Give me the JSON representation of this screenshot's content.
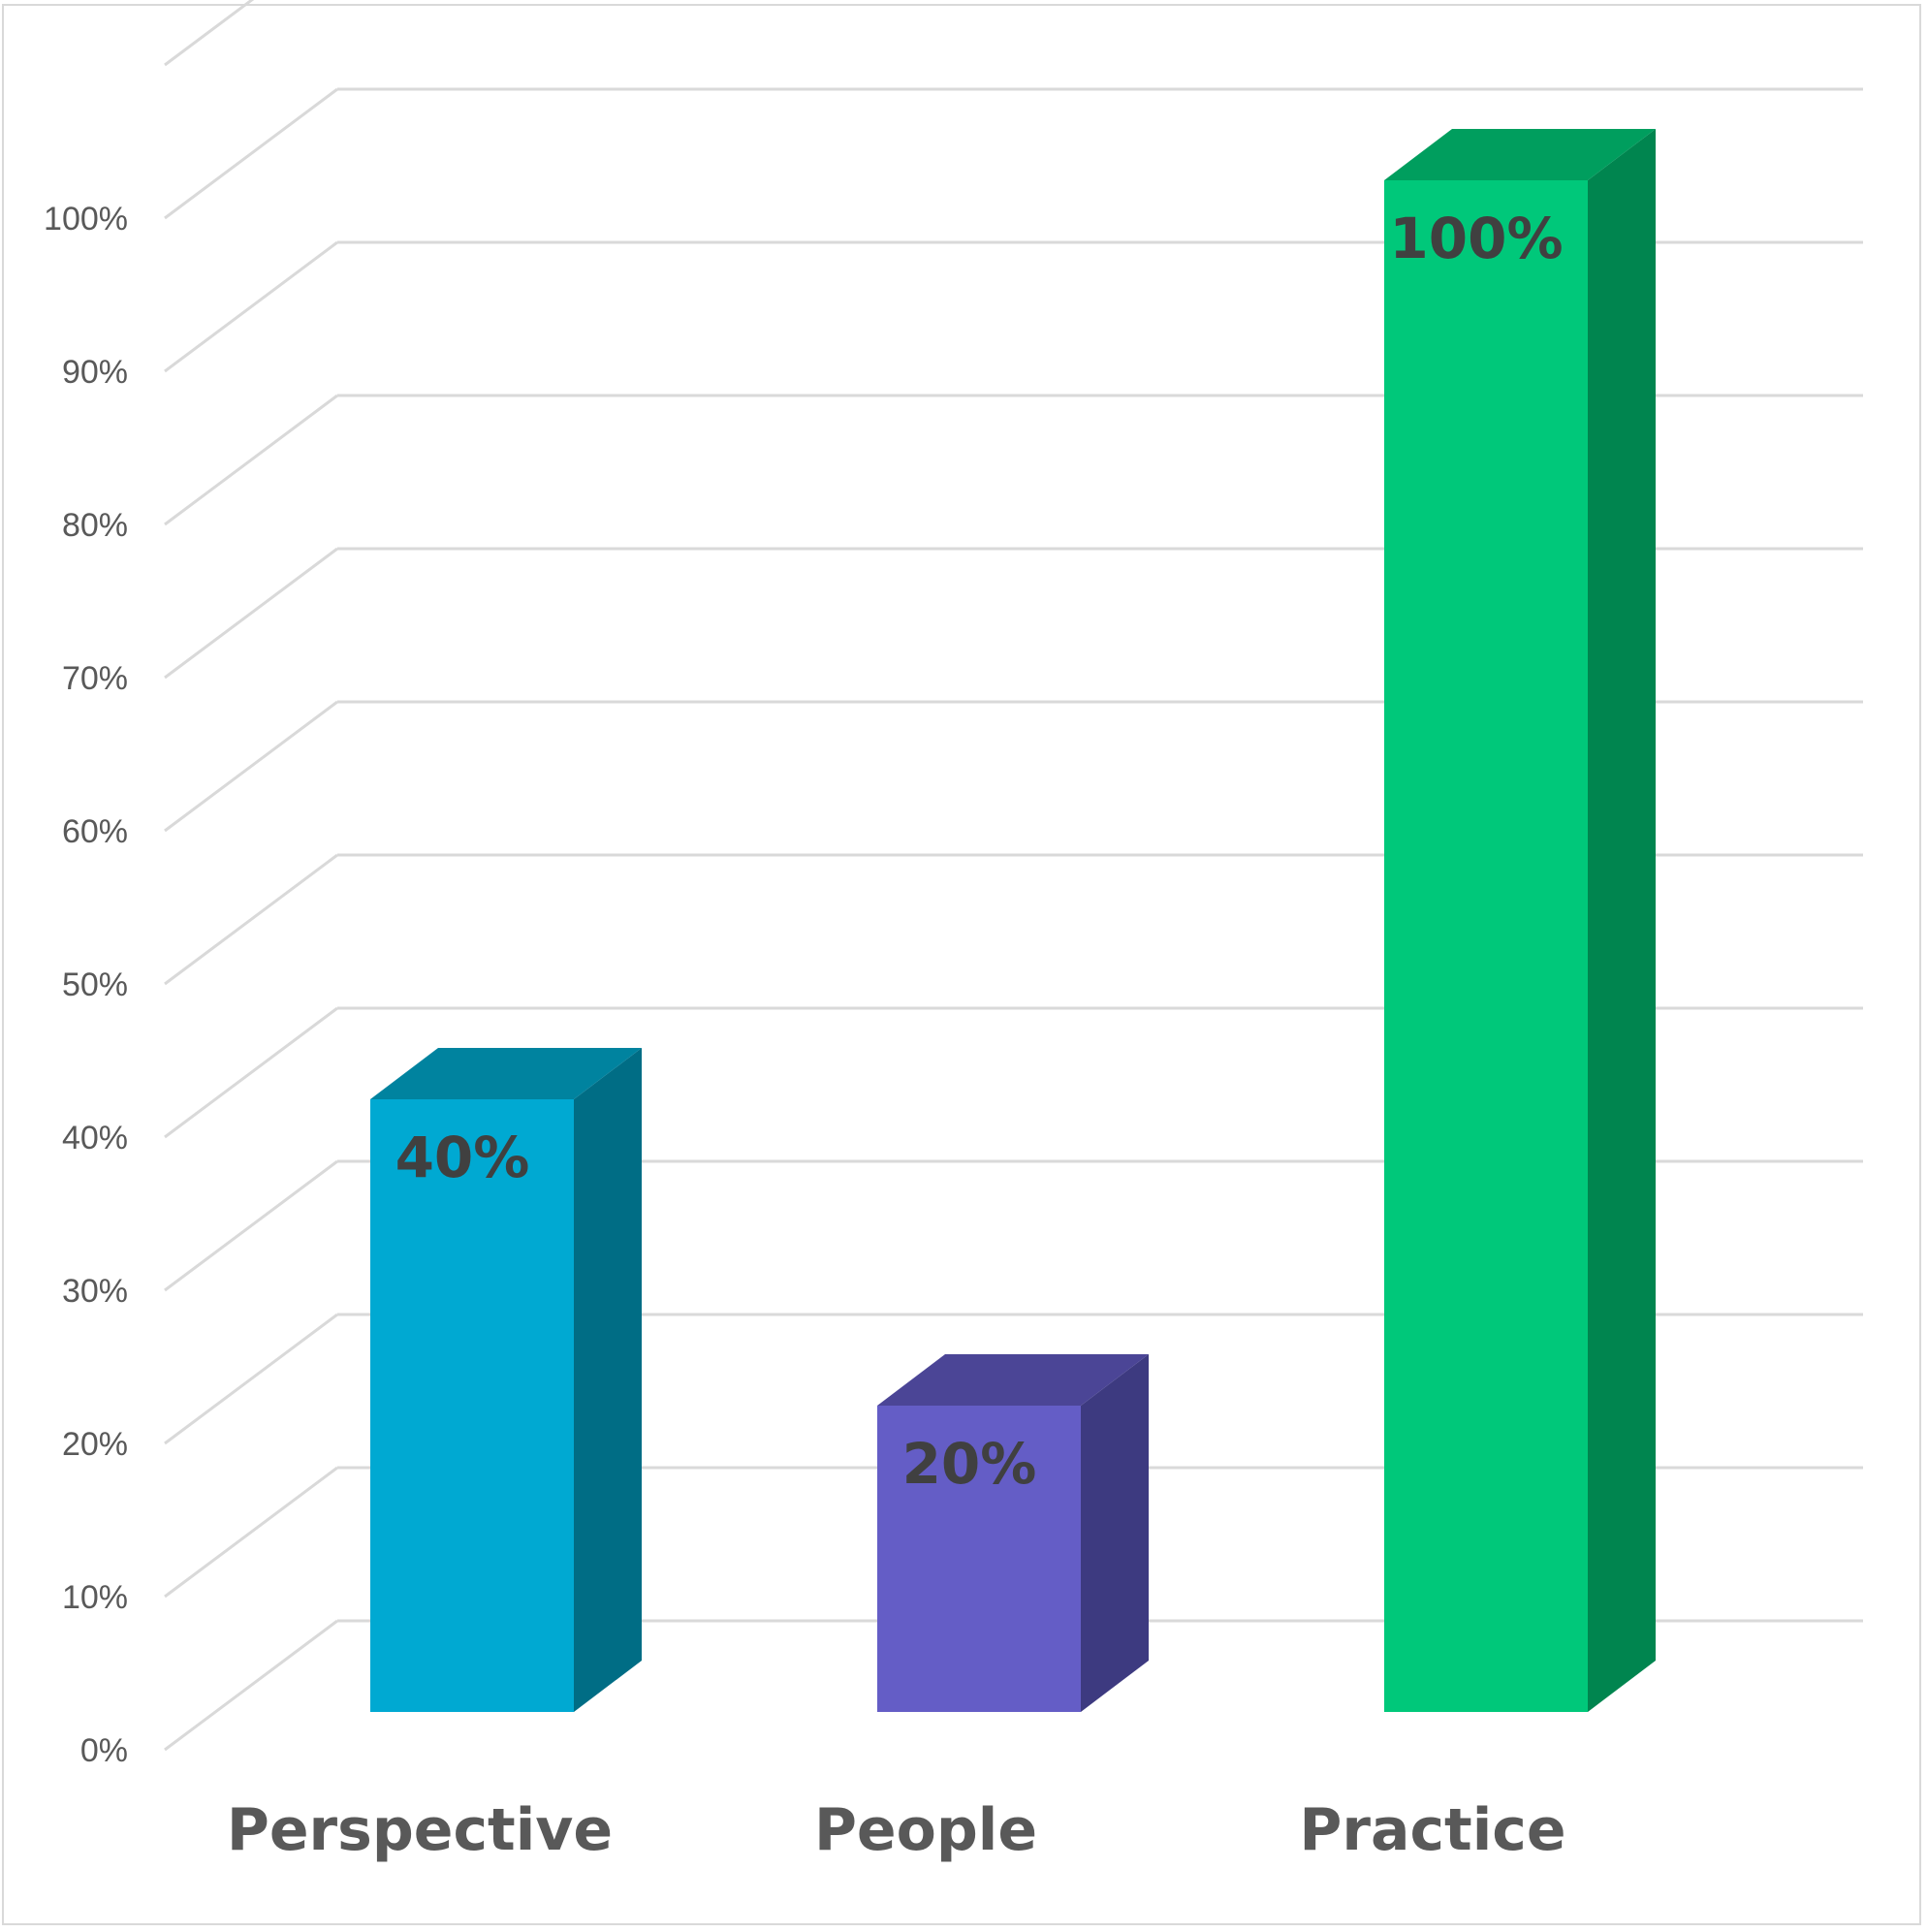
{
  "chart_data": {
    "type": "bar",
    "style": "3d-column",
    "title": "",
    "xlabel": "",
    "ylabel": "",
    "ylim": [
      0,
      100
    ],
    "ytick_step": 10,
    "ytick_labels": [
      "0%",
      "10%",
      "20%",
      "30%",
      "40%",
      "50%",
      "60%",
      "70%",
      "80%",
      "90%",
      "100%"
    ],
    "grid": true,
    "legend": "none",
    "categories": [
      "Perspective",
      "People",
      "Practice"
    ],
    "values": [
      40,
      20,
      100
    ],
    "data_labels": [
      "40%",
      "20%",
      "100%"
    ],
    "colors": {
      "front": [
        "#00A9D2",
        "#645DC6",
        "#00C87A"
      ],
      "side": [
        "#006D85",
        "#3D3A80",
        "#00854F"
      ],
      "top": [
        "#00839F",
        "#4B4596",
        "#009E5E"
      ],
      "grid": "#d9d9d9",
      "tick_text": "#595959",
      "label_text": "#404040"
    }
  }
}
